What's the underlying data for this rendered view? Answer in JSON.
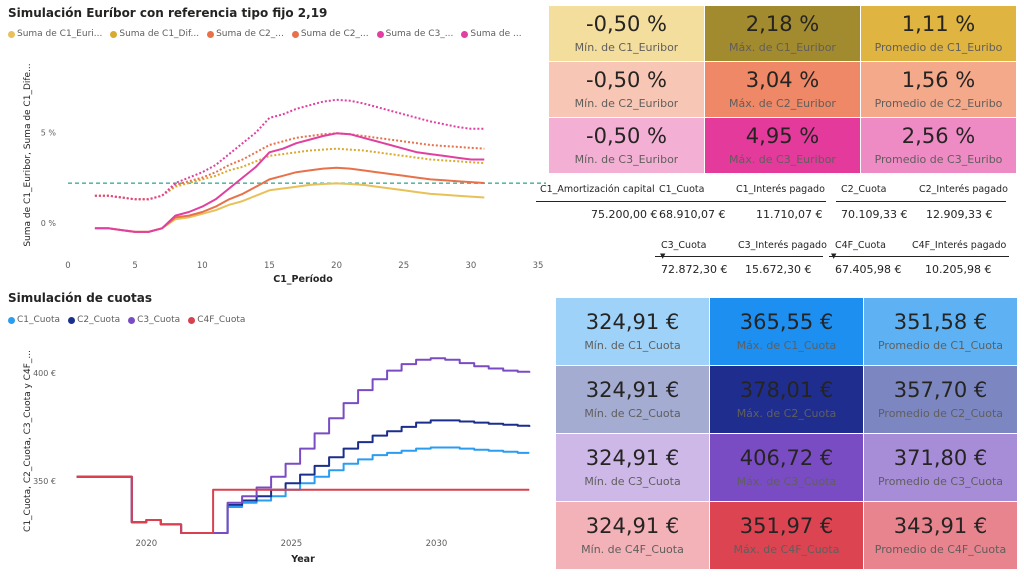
{
  "chart1": {
    "title": "Simulación Euríbor con referencia tipo fijo 2,19",
    "legend": [
      {
        "label": "Suma de C1_Euri...",
        "color": "#E8C15A"
      },
      {
        "label": "Suma de C1_Dif...",
        "color": "#D9AA2E"
      },
      {
        "label": "Suma de C2_...",
        "color": "#E8714A"
      },
      {
        "label": "Suma de C2_...",
        "color": "#E8714A"
      },
      {
        "label": "Suma de C3_...",
        "color": "#E040A0"
      },
      {
        "label": "Suma de ...",
        "color": "#E040A0"
      }
    ],
    "ylabel": "Suma de C1_Euribor, Suma de C1_Dife...",
    "xlabel": "C1_Período",
    "y_ticks": [
      "5 %",
      "0 %"
    ],
    "x_ticks": [
      "0",
      "5",
      "10",
      "15",
      "20",
      "25",
      "30",
      "35"
    ]
  },
  "kpi_top": [
    {
      "value": "-0,50 %",
      "label": "Mín. de C1_Euribor",
      "bg": "#F3DE9E"
    },
    {
      "value": "2,18 %",
      "label": "Máx. de C1_Euribor",
      "bg": "#A28A2E"
    },
    {
      "value": "1,11 %",
      "label": "Promedio de C1_Euribo",
      "bg": "#E0B440"
    },
    {
      "value": "-0,50 %",
      "label": "Mín. de C2_Euribor",
      "bg": "#F7C6B4"
    },
    {
      "value": "3,04 %",
      "label": "Máx. de C2_Euribor",
      "bg": "#EE8866"
    },
    {
      "value": "1,56 %",
      "label": "Promedio de C2_Euribo",
      "bg": "#F4A98A"
    },
    {
      "value": "-0,50 %",
      "label": "Mín. de C3_Euribor",
      "bg": "#F3B0D4"
    },
    {
      "value": "4,95 %",
      "label": "Máx. de C3_Euribor",
      "bg": "#E43A9C"
    },
    {
      "value": "2,56 %",
      "label": "Promedio de C3_Euribo",
      "bg": "#EE8AC4"
    }
  ],
  "table1": {
    "headers": [
      "C1_Amortización capital",
      "C1_Cuota",
      "C1_Interés pagado",
      "C2_Cuota",
      "C2_Interés pagado"
    ],
    "values": [
      "75.200,00 €",
      "68.910,07 €",
      "11.710,07 €",
      "70.109,33 €",
      "12.909,33 €"
    ]
  },
  "table2": {
    "headers": [
      "C3_Cuota",
      "C3_Interés pagado",
      "C4F_Cuota",
      "C4F_Interés pagado"
    ],
    "values": [
      "72.872,30 €",
      "15.672,30 €",
      "67.405,98 €",
      "10.205,98 €"
    ]
  },
  "chart2": {
    "title": "Simulación de cuotas",
    "legend": [
      {
        "label": "C1_Cuota",
        "color": "#2A9DF0"
      },
      {
        "label": "C2_Cuota",
        "color": "#1A2F8C"
      },
      {
        "label": "C3_Cuota",
        "color": "#7A4CC4"
      },
      {
        "label": "C4F_Cuota",
        "color": "#D9414E"
      }
    ],
    "ylabel": "C1_Cuota, C2_Cuota, C3_Cuota y C4F_...",
    "xlabel": "Year",
    "y_ticks": [
      "400 €",
      "350 €"
    ],
    "x_ticks": [
      "2020",
      "2025",
      "2030"
    ]
  },
  "kpi_bottom": [
    {
      "value": "324,91 €",
      "label": "Mín. de C1_Cuota",
      "bg": "#9ED2F8"
    },
    {
      "value": "365,55 €",
      "label": "Máx. de C1_Cuota",
      "bg": "#1C8FF0"
    },
    {
      "value": "351,58 €",
      "label": "Promedio de C1_Cuota",
      "bg": "#5EB2F4"
    },
    {
      "value": "324,91 €",
      "label": "Mín. de C2_Cuota",
      "bg": "#A4ACD2"
    },
    {
      "value": "378,01 €",
      "label": "Máx. de C2_Cuota",
      "bg": "#1F2E8E"
    },
    {
      "value": "357,70 €",
      "label": "Promedio de C2_Cuota",
      "bg": "#7C87C2"
    },
    {
      "value": "324,91 €",
      "label": "Mín. de C3_Cuota",
      "bg": "#CDB8E8"
    },
    {
      "value": "406,72 €",
      "label": "Máx. de C3_Cuota",
      "bg": "#7A4CC4"
    },
    {
      "value": "371,80 €",
      "label": "Promedio de C3_Cuota",
      "bg": "#A78CD8"
    },
    {
      "value": "324,91 €",
      "label": "Mín. de C4F_Cuota",
      "bg": "#F2B2B8"
    },
    {
      "value": "351,97 €",
      "label": "Máx. de C4F_Cuota",
      "bg": "#DC4452"
    },
    {
      "value": "343,91 €",
      "label": "Promedio de C4F_Cuota",
      "bg": "#E8848E"
    }
  ],
  "chart_data": [
    {
      "type": "line",
      "title": "Simulación Euríbor con referencia tipo fijo 2,19",
      "xlabel": "C1_Período",
      "ylabel": "Suma de C1_Euribor, Suma de C1_Dife...",
      "xlim": [
        0,
        35
      ],
      "ylim": [
        -1.5,
        9
      ],
      "reference_line": 2.19,
      "x": [
        2,
        3,
        4,
        5,
        6,
        7,
        8,
        9,
        10,
        11,
        12,
        13,
        14,
        15,
        16,
        17,
        18,
        19,
        20,
        21,
        22,
        23,
        24,
        25,
        26,
        27,
        28,
        29,
        30,
        31
      ],
      "series": [
        {
          "name": "Suma de C1_Euri...",
          "color": "#E8C15A",
          "style": "solid",
          "values": [
            -0.3,
            -0.3,
            -0.4,
            -0.5,
            -0.5,
            -0.3,
            0.2,
            0.3,
            0.5,
            0.7,
            1.0,
            1.2,
            1.5,
            1.8,
            1.9,
            2.0,
            2.1,
            2.15,
            2.18,
            2.15,
            2.1,
            2.0,
            1.9,
            1.8,
            1.7,
            1.6,
            1.55,
            1.5,
            1.45,
            1.4
          ]
        },
        {
          "name": "Suma de C1_Dif...",
          "color": "#D9AA2E",
          "style": "dotted",
          "values": [
            1.5,
            1.5,
            1.4,
            1.3,
            1.3,
            1.5,
            2.0,
            2.2,
            2.4,
            2.6,
            2.9,
            3.1,
            3.4,
            3.7,
            3.8,
            3.9,
            4.0,
            4.05,
            4.1,
            4.05,
            4.0,
            3.9,
            3.8,
            3.7,
            3.6,
            3.5,
            3.45,
            3.4,
            3.35,
            3.3
          ]
        },
        {
          "name": "Suma de C2_...",
          "color": "#E8714A",
          "style": "solid",
          "values": [
            -0.3,
            -0.3,
            -0.4,
            -0.5,
            -0.5,
            -0.3,
            0.3,
            0.4,
            0.6,
            0.9,
            1.3,
            1.6,
            2.0,
            2.4,
            2.6,
            2.8,
            2.9,
            3.0,
            3.04,
            3.0,
            2.9,
            2.8,
            2.7,
            2.6,
            2.5,
            2.4,
            2.35,
            2.3,
            2.25,
            2.2
          ]
        },
        {
          "name": "Suma de C2_...",
          "color": "#E8714A",
          "style": "dotted",
          "values": [
            1.5,
            1.5,
            1.4,
            1.3,
            1.3,
            1.5,
            2.1,
            2.3,
            2.5,
            2.8,
            3.2,
            3.5,
            3.9,
            4.3,
            4.5,
            4.7,
            4.8,
            4.9,
            4.95,
            4.9,
            4.8,
            4.7,
            4.6,
            4.5,
            4.4,
            4.3,
            4.25,
            4.2,
            4.15,
            4.1
          ]
        },
        {
          "name": "Suma de C3_...",
          "color": "#E040A0",
          "style": "solid",
          "values": [
            -0.3,
            -0.3,
            -0.4,
            -0.5,
            -0.5,
            -0.3,
            0.4,
            0.6,
            0.9,
            1.3,
            1.9,
            2.5,
            3.1,
            3.9,
            4.1,
            4.4,
            4.6,
            4.8,
            4.95,
            4.9,
            4.7,
            4.5,
            4.3,
            4.1,
            3.9,
            3.8,
            3.7,
            3.6,
            3.5,
            3.5
          ]
        },
        {
          "name": "Suma de ...",
          "color": "#E040A0",
          "style": "dotted",
          "values": [
            1.5,
            1.5,
            1.4,
            1.3,
            1.3,
            1.5,
            2.2,
            2.5,
            2.8,
            3.2,
            3.8,
            4.4,
            5.0,
            5.8,
            6.0,
            6.3,
            6.5,
            6.7,
            6.8,
            6.75,
            6.6,
            6.4,
            6.2,
            6.0,
            5.8,
            5.6,
            5.45,
            5.3,
            5.2,
            5.2
          ]
        }
      ]
    },
    {
      "type": "line",
      "title": "Simulación de cuotas",
      "xlabel": "Year",
      "ylabel": "C1_Cuota, C2_Cuota, C3_Cuota y C4F_...",
      "xlim": [
        2017.3,
        2033.5
      ],
      "ylim": [
        320,
        417
      ],
      "x_ticks": [
        2020,
        2025,
        2030
      ],
      "series": [
        {
          "name": "C1_Cuota",
          "color": "#2A9DF0",
          "x": [
            2017.6,
            2019.2,
            2019.5,
            2020.0,
            2020.5,
            2020.9,
            2021.2,
            2021.5,
            2022.0,
            2022.8,
            2023.3,
            2023.8,
            2024.3,
            2024.8,
            2025.3,
            2025.8,
            2026.3,
            2026.8,
            2027.3,
            2027.8,
            2028.3,
            2028.8,
            2029.3,
            2029.8,
            2030.3,
            2030.8,
            2031.3,
            2031.8,
            2032.3,
            2032.8,
            2033.2
          ],
          "values": [
            352,
            352,
            331,
            332,
            330,
            330,
            326,
            326,
            326,
            338,
            340,
            341,
            343,
            346,
            349,
            352,
            355,
            358,
            360,
            362,
            363,
            364,
            365,
            365.5,
            365.5,
            365,
            364.5,
            364,
            363.5,
            363,
            363
          ]
        },
        {
          "name": "C2_Cuota",
          "color": "#1A2F8C",
          "x": [
            2017.6,
            2019.2,
            2019.5,
            2020.0,
            2020.5,
            2020.9,
            2021.2,
            2021.5,
            2022.0,
            2022.8,
            2023.3,
            2023.8,
            2024.3,
            2024.8,
            2025.3,
            2025.8,
            2026.3,
            2026.8,
            2027.3,
            2027.8,
            2028.3,
            2028.8,
            2029.3,
            2029.8,
            2030.3,
            2030.8,
            2031.3,
            2031.8,
            2032.3,
            2032.8,
            2033.2
          ],
          "values": [
            352,
            352,
            331,
            332,
            330,
            330,
            326,
            326,
            326,
            339,
            341,
            343,
            346,
            349,
            353,
            357,
            361,
            365,
            368,
            371,
            373,
            375,
            377,
            378,
            378,
            377.5,
            377,
            376.5,
            376,
            375.5,
            375
          ]
        },
        {
          "name": "C3_Cuota",
          "color": "#7A4CC4",
          "x": [
            2017.6,
            2019.2,
            2019.5,
            2020.0,
            2020.5,
            2020.9,
            2021.2,
            2021.5,
            2022.0,
            2022.8,
            2023.3,
            2023.8,
            2024.3,
            2024.8,
            2025.3,
            2025.8,
            2026.3,
            2026.8,
            2027.3,
            2027.8,
            2028.3,
            2028.8,
            2029.3,
            2029.8,
            2030.3,
            2030.8,
            2031.3,
            2031.8,
            2032.3,
            2032.8,
            2033.2
          ],
          "values": [
            352,
            352,
            331,
            332,
            330,
            330,
            326,
            326,
            326,
            340,
            343,
            347,
            352,
            358,
            365,
            372,
            379,
            386,
            392,
            397,
            401,
            404,
            406,
            406.7,
            406,
            404.5,
            403,
            402,
            401,
            400.5,
            400
          ]
        },
        {
          "name": "C4F_Cuota",
          "color": "#D9414E",
          "x": [
            2017.6,
            2019.2,
            2019.5,
            2020.0,
            2020.5,
            2020.9,
            2021.2,
            2021.5,
            2022.0,
            2022.3,
            2023.0,
            2025.0,
            2030.0,
            2033.2
          ],
          "values": [
            352,
            352,
            331,
            332,
            330,
            330,
            326,
            326,
            326,
            346,
            346,
            346,
            346,
            346
          ]
        }
      ]
    }
  ]
}
